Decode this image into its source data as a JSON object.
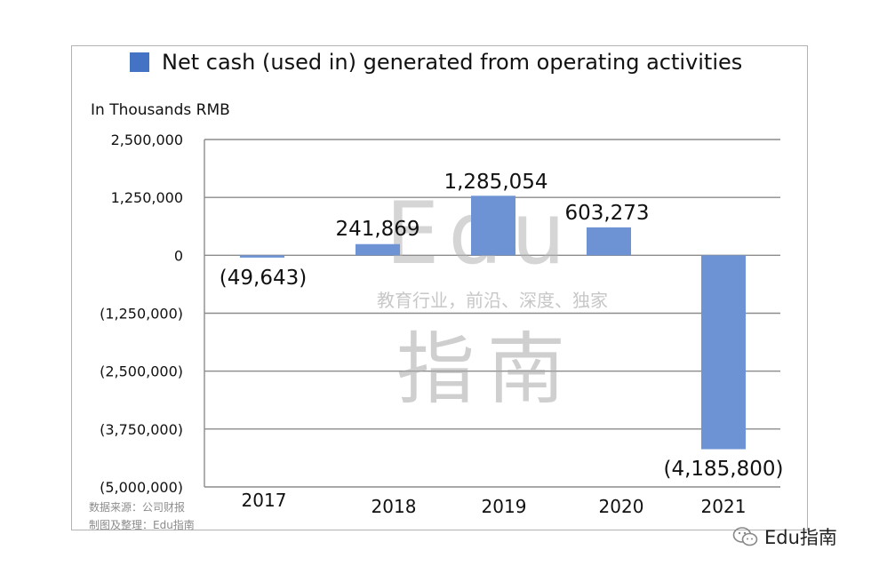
{
  "chart_data": {
    "type": "bar",
    "title": "",
    "xlabel": "",
    "ylabel": "In Thousands RMB",
    "ylim": [
      -5000000,
      2500000
    ],
    "yticks": [
      2500000,
      1250000,
      0,
      -1250000,
      -2500000,
      -3750000,
      -5000000
    ],
    "ytick_labels": [
      "2,500,000",
      "1,250,000",
      "0",
      "(1,250,000)",
      "(2,500,000)",
      "(3,750,000)",
      "(5,000,000)"
    ],
    "categories": [
      "2017",
      "2018",
      "2019",
      "2020",
      "2021"
    ],
    "series": [
      {
        "name": "Net cash (used in) generated from operating activities",
        "values": [
          -49643,
          241869,
          1285054,
          603273,
          -4185800
        ],
        "labels": [
          "(49,643)",
          "241,869",
          "1,285,054",
          "603,273",
          "(4,185,800)"
        ]
      }
    ],
    "grid": true,
    "legend": "top",
    "color": "#4472c4",
    "bar_color": "#6e93d4"
  },
  "watermark": {
    "line1": "Edu",
    "line2": "教育行业，前沿、深度、独家",
    "line3": "指南"
  },
  "source": {
    "line1": "数据来源：公司财报",
    "line2": "制图及整理：Edu指南"
  },
  "brand": {
    "icon": "wechat-icon",
    "label": "Edu指南"
  }
}
